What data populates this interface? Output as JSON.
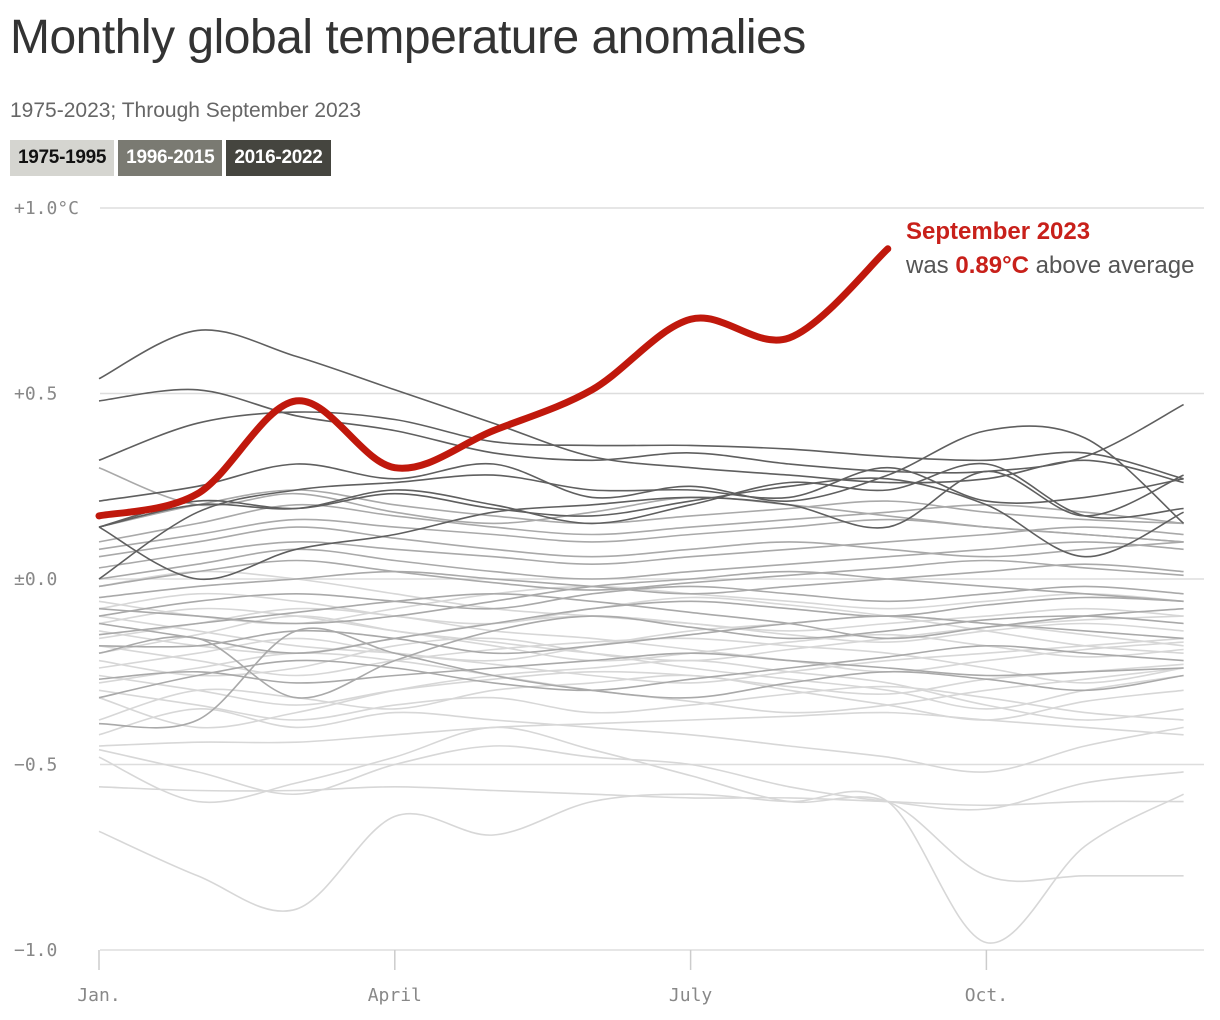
{
  "header": {
    "title": "Monthly global temperature anomalies",
    "subtitle": "1975-2023; Through September 2023"
  },
  "legend": [
    {
      "label": "1975-1995",
      "bg": "#d5d5d0",
      "fg": "#111111"
    },
    {
      "label": "1996-2015",
      "bg": "#7a7a72",
      "fg": "#ffffff"
    },
    {
      "label": "2016-2022",
      "bg": "#45453f",
      "fg": "#ffffff"
    }
  ],
  "annotation": {
    "heading": "September 2023",
    "prefix": "was ",
    "value": "0.89°C",
    "suffix": " above average"
  },
  "colors": {
    "early": "#d7d7d7",
    "mid": "#a9a9a9",
    "late": "#5f5f5f",
    "highlight": "#c0180c",
    "grid": "#dddddd"
  },
  "chart_data": {
    "type": "line",
    "x": [
      1,
      2,
      3,
      4,
      5,
      6,
      7,
      8,
      9,
      10,
      11,
      12
    ],
    "x_tick_labels": [
      {
        "month": 1,
        "label": "Jan."
      },
      {
        "month": 4,
        "label": "April"
      },
      {
        "month": 7,
        "label": "July"
      },
      {
        "month": 10,
        "label": "Oct."
      }
    ],
    "y_ticks": [
      {
        "value": 1.0,
        "label": "+1.0°C"
      },
      {
        "value": 0.5,
        "label": "+0.5"
      },
      {
        "value": 0.0,
        "label": "±0.0"
      },
      {
        "value": -0.5,
        "label": "−0.5"
      },
      {
        "value": -1.0,
        "label": "−1.0"
      }
    ],
    "ylim": [
      -1.0,
      1.0
    ],
    "grid": true,
    "series": [
      {
        "group": "1975-1995",
        "values": [
          -0.68,
          -0.8,
          -0.89,
          -0.64,
          -0.69,
          -0.6,
          -0.58,
          -0.6,
          -0.6,
          -0.98,
          -0.72,
          -0.58
        ]
      },
      {
        "group": "1975-1995",
        "values": [
          -0.56,
          -0.57,
          -0.57,
          -0.56,
          -0.57,
          -0.58,
          -0.59,
          -0.59,
          -0.6,
          -0.61,
          -0.6,
          -0.6
        ]
      },
      {
        "group": "1975-1995",
        "values": [
          -0.48,
          -0.6,
          -0.55,
          -0.48,
          -0.4,
          -0.46,
          -0.53,
          -0.6,
          -0.6,
          -0.8,
          -0.8,
          -0.8
        ]
      },
      {
        "group": "1975-1995",
        "values": [
          -0.46,
          -0.52,
          -0.58,
          -0.5,
          -0.45,
          -0.48,
          -0.5,
          -0.56,
          -0.6,
          -0.62,
          -0.55,
          -0.52
        ]
      },
      {
        "group": "1975-1995",
        "values": [
          -0.45,
          -0.44,
          -0.44,
          -0.42,
          -0.4,
          -0.39,
          -0.38,
          -0.37,
          -0.36,
          -0.38,
          -0.4,
          -0.42
        ]
      },
      {
        "group": "1975-1995",
        "values": [
          -0.42,
          -0.35,
          -0.4,
          -0.36,
          -0.38,
          -0.4,
          -0.42,
          -0.45,
          -0.48,
          -0.52,
          -0.45,
          -0.4
        ]
      },
      {
        "group": "1975-1995",
        "values": [
          -0.38,
          -0.3,
          -0.32,
          -0.35,
          -0.3,
          -0.28,
          -0.26,
          -0.3,
          -0.34,
          -0.38,
          -0.33,
          -0.3
        ]
      },
      {
        "group": "1975-1995",
        "values": [
          -0.32,
          -0.4,
          -0.36,
          -0.3,
          -0.26,
          -0.24,
          -0.22,
          -0.25,
          -0.28,
          -0.34,
          -0.38,
          -0.35
        ]
      },
      {
        "group": "1975-1995",
        "values": [
          -0.3,
          -0.34,
          -0.38,
          -0.34,
          -0.32,
          -0.36,
          -0.34,
          -0.31,
          -0.29,
          -0.32,
          -0.36,
          -0.38
        ]
      },
      {
        "group": "1975-1995",
        "values": [
          -0.28,
          -0.24,
          -0.2,
          -0.22,
          -0.26,
          -0.3,
          -0.33,
          -0.36,
          -0.34,
          -0.3,
          -0.27,
          -0.24
        ]
      },
      {
        "group": "1975-1995",
        "values": [
          -0.26,
          -0.3,
          -0.34,
          -0.3,
          -0.27,
          -0.25,
          -0.26,
          -0.29,
          -0.31,
          -0.27,
          -0.25,
          -0.23
        ]
      },
      {
        "group": "1975-1995",
        "values": [
          -0.24,
          -0.2,
          -0.16,
          -0.2,
          -0.23,
          -0.26,
          -0.28,
          -0.25,
          -0.22,
          -0.2,
          -0.18,
          -0.16
        ]
      },
      {
        "group": "1975-1995",
        "values": [
          -0.22,
          -0.26,
          -0.24,
          -0.18,
          -0.16,
          -0.2,
          -0.24,
          -0.27,
          -0.3,
          -0.35,
          -0.3,
          -0.26
        ]
      },
      {
        "group": "1975-1995",
        "values": [
          -0.2,
          -0.15,
          -0.1,
          -0.14,
          -0.18,
          -0.22,
          -0.2,
          -0.17,
          -0.15,
          -0.18,
          -0.21,
          -0.19
        ]
      },
      {
        "group": "1975-1995",
        "values": [
          -0.18,
          -0.22,
          -0.26,
          -0.22,
          -0.19,
          -0.17,
          -0.16,
          -0.18,
          -0.2,
          -0.24,
          -0.28,
          -0.24
        ]
      },
      {
        "group": "1975-1995",
        "values": [
          -0.16,
          -0.12,
          -0.08,
          -0.1,
          -0.14,
          -0.16,
          -0.19,
          -0.22,
          -0.25,
          -0.22,
          -0.19,
          -0.17
        ]
      },
      {
        "group": "1975-1995",
        "values": [
          -0.14,
          -0.18,
          -0.2,
          -0.16,
          -0.12,
          -0.1,
          -0.12,
          -0.15,
          -0.17,
          -0.14,
          -0.12,
          -0.14
        ]
      },
      {
        "group": "1975-1995",
        "values": [
          -0.12,
          -0.08,
          -0.1,
          -0.14,
          -0.17,
          -0.2,
          -0.22,
          -0.19,
          -0.16,
          -0.13,
          -0.11,
          -0.1
        ]
      },
      {
        "group": "1975-1995",
        "values": [
          -0.1,
          -0.14,
          -0.18,
          -0.2,
          -0.22,
          -0.18,
          -0.14,
          -0.12,
          -0.1,
          -0.12,
          -0.15,
          -0.18
        ]
      },
      {
        "group": "1975-1995",
        "values": [
          -0.08,
          -0.04,
          -0.06,
          -0.1,
          -0.12,
          -0.08,
          -0.05,
          -0.07,
          -0.1,
          -0.14,
          -0.18,
          -0.2
        ]
      },
      {
        "group": "1975-1995",
        "values": [
          -0.06,
          -0.1,
          -0.12,
          -0.08,
          -0.04,
          -0.02,
          -0.04,
          -0.06,
          -0.08,
          -0.06,
          -0.04,
          -0.06
        ]
      },
      {
        "group": "1975-1995",
        "values": [
          -0.02,
          0.02,
          0.0,
          -0.04,
          -0.08,
          -0.1,
          -0.12,
          -0.14,
          -0.12,
          -0.1,
          -0.08,
          -0.1
        ]
      },
      {
        "group": "1996-2015",
        "values": [
          -0.32,
          -0.26,
          -0.22,
          -0.24,
          -0.28,
          -0.3,
          -0.27,
          -0.24,
          -0.21,
          -0.18,
          -0.2,
          -0.22
        ]
      },
      {
        "group": "1996-2015",
        "values": [
          -0.39,
          -0.38,
          -0.14,
          -0.2,
          -0.26,
          -0.3,
          -0.32,
          -0.28,
          -0.25,
          -0.27,
          -0.3,
          -0.26
        ]
      },
      {
        "group": "1996-2015",
        "values": [
          -0.27,
          -0.25,
          -0.28,
          -0.26,
          -0.24,
          -0.22,
          -0.2,
          -0.22,
          -0.24,
          -0.26,
          -0.25,
          -0.24
        ]
      },
      {
        "group": "1996-2015",
        "values": [
          -0.2,
          -0.16,
          -0.32,
          -0.22,
          -0.14,
          -0.1,
          -0.13,
          -0.16,
          -0.14,
          -0.11,
          -0.1,
          -0.12
        ]
      },
      {
        "group": "1996-2015",
        "values": [
          -0.18,
          -0.18,
          -0.14,
          -0.16,
          -0.2,
          -0.18,
          -0.15,
          -0.12,
          -0.1,
          -0.12,
          -0.14,
          -0.16
        ]
      },
      {
        "group": "1996-2015",
        "values": [
          -0.15,
          -0.12,
          -0.09,
          -0.06,
          -0.04,
          -0.06,
          -0.09,
          -0.12,
          -0.16,
          -0.13,
          -0.1,
          -0.08
        ]
      },
      {
        "group": "1996-2015",
        "values": [
          -0.12,
          -0.16,
          -0.2,
          -0.16,
          -0.12,
          -0.08,
          -0.06,
          -0.08,
          -0.1,
          -0.07,
          -0.05,
          -0.06
        ]
      },
      {
        "group": "1996-2015",
        "values": [
          -0.1,
          -0.06,
          -0.04,
          -0.06,
          -0.08,
          -0.04,
          -0.02,
          -0.04,
          -0.06,
          -0.04,
          -0.02,
          -0.04
        ]
      },
      {
        "group": "1996-2015",
        "values": [
          -0.08,
          -0.1,
          -0.12,
          -0.1,
          -0.06,
          -0.02,
          0.0,
          0.02,
          0.0,
          -0.02,
          -0.04,
          -0.06
        ]
      },
      {
        "group": "1996-2015",
        "values": [
          -0.05,
          -0.02,
          0.0,
          0.02,
          0.0,
          -0.02,
          -0.04,
          -0.02,
          0.0,
          0.02,
          0.04,
          0.02
        ]
      },
      {
        "group": "1996-2015",
        "values": [
          -0.02,
          0.02,
          0.05,
          0.02,
          -0.01,
          -0.03,
          -0.01,
          0.01,
          0.03,
          0.05,
          0.03,
          0.01
        ]
      },
      {
        "group": "1996-2015",
        "values": [
          0.0,
          0.04,
          0.08,
          0.05,
          0.02,
          0.0,
          0.02,
          0.04,
          0.06,
          0.08,
          0.1,
          0.08
        ]
      },
      {
        "group": "1996-2015",
        "values": [
          0.03,
          0.07,
          0.1,
          0.08,
          0.06,
          0.04,
          0.06,
          0.08,
          0.1,
          0.12,
          0.14,
          0.12
        ]
      },
      {
        "group": "1996-2015",
        "values": [
          0.06,
          0.1,
          0.14,
          0.11,
          0.08,
          0.06,
          0.08,
          0.1,
          0.08,
          0.06,
          0.08,
          0.1
        ]
      },
      {
        "group": "1996-2015",
        "values": [
          0.08,
          0.12,
          0.16,
          0.14,
          0.12,
          0.1,
          0.12,
          0.14,
          0.16,
          0.14,
          0.12,
          0.1
        ]
      },
      {
        "group": "1996-2015",
        "values": [
          0.1,
          0.15,
          0.2,
          0.17,
          0.14,
          0.12,
          0.14,
          0.16,
          0.18,
          0.2,
          0.18,
          0.15
        ]
      },
      {
        "group": "1996-2015",
        "values": [
          0.3,
          0.2,
          0.23,
          0.18,
          0.15,
          0.18,
          0.22,
          0.2,
          0.17,
          0.14,
          0.12,
          0.1
        ]
      },
      {
        "group": "1996-2015",
        "values": [
          0.14,
          0.2,
          0.24,
          0.2,
          0.17,
          0.15,
          0.17,
          0.19,
          0.21,
          0.18,
          0.16,
          0.15
        ]
      },
      {
        "group": "2016-2022",
        "values": [
          0.54,
          0.67,
          0.6,
          0.51,
          0.42,
          0.33,
          0.3,
          0.28,
          0.26,
          0.27,
          0.32,
          0.26
        ]
      },
      {
        "group": "2016-2022",
        "values": [
          0.48,
          0.51,
          0.44,
          0.4,
          0.34,
          0.32,
          0.34,
          0.31,
          0.29,
          0.29,
          0.33,
          0.47
        ]
      },
      {
        "group": "2016-2022",
        "values": [
          0.32,
          0.42,
          0.45,
          0.43,
          0.37,
          0.36,
          0.36,
          0.35,
          0.33,
          0.32,
          0.34,
          0.27
        ]
      },
      {
        "group": "2016-2022",
        "values": [
          0.21,
          0.25,
          0.31,
          0.27,
          0.31,
          0.22,
          0.25,
          0.21,
          0.28,
          0.4,
          0.38,
          0.15
        ]
      },
      {
        "group": "2016-2022",
        "values": [
          0.14,
          0.2,
          0.19,
          0.24,
          0.2,
          0.15,
          0.2,
          0.26,
          0.24,
          0.31,
          0.17,
          0.19
        ]
      },
      {
        "group": "2016-2022",
        "values": [
          0.14,
          0.21,
          0.19,
          0.23,
          0.19,
          0.17,
          0.21,
          0.25,
          0.27,
          0.2,
          0.06,
          0.18
        ]
      },
      {
        "group": "2016-2022",
        "values": [
          0.14,
          0.0,
          0.08,
          0.12,
          0.18,
          0.2,
          0.22,
          0.2,
          0.14,
          0.29,
          0.17,
          0.28
        ]
      },
      {
        "group": "2016-2022",
        "values": [
          0.0,
          0.18,
          0.24,
          0.26,
          0.28,
          0.24,
          0.24,
          0.22,
          0.3,
          0.21,
          0.22,
          0.27
        ]
      }
    ],
    "highlight": {
      "name": "2023",
      "months": [
        1,
        2,
        3,
        4,
        5,
        6,
        7,
        8,
        9
      ],
      "values": [
        0.17,
        0.23,
        0.48,
        0.3,
        0.4,
        0.51,
        0.7,
        0.65,
        0.89
      ]
    }
  }
}
